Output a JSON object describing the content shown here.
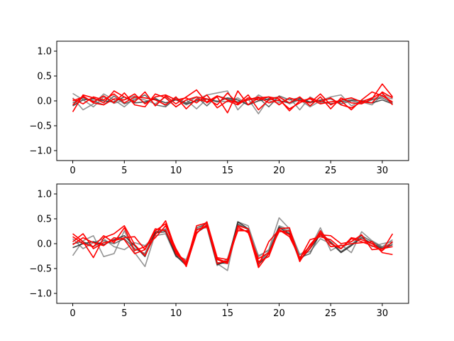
{
  "chart_data": [
    {
      "type": "line",
      "title": "",
      "xlabel": "",
      "ylabel": "",
      "xlim": [
        -1.55,
        32.55
      ],
      "ylim": [
        -1.2,
        1.2
      ],
      "xticks": [
        0,
        5,
        10,
        15,
        20,
        25,
        30
      ],
      "yticks": [
        -1.0,
        -0.5,
        0.0,
        0.5,
        1.0
      ],
      "ytick_labels": [
        "−1.0",
        "−0.5",
        "0.0",
        "0.5",
        "1.0"
      ],
      "grid": false,
      "legend": "none",
      "x": [
        0,
        1,
        2,
        3,
        4,
        5,
        6,
        7,
        8,
        9,
        10,
        11,
        12,
        13,
        14,
        15,
        16,
        17,
        18,
        19,
        20,
        21,
        22,
        23,
        24,
        25,
        26,
        27,
        28,
        29,
        30,
        31
      ],
      "series": [
        {
          "color": "#808080",
          "values": [
            0.15,
            0.02,
            -0.12,
            0.08,
            -0.05,
            0.02,
            0.1,
            -0.04,
            0.06,
            -0.1,
            0.04,
            -0.08,
            0.02,
            0.12,
            0.16,
            0.2,
            -0.18,
            0.04,
            -0.26,
            0.05,
            0.08,
            -0.06,
            0.02,
            -0.12,
            0.0,
            0.08,
            0.12,
            -0.1,
            0.0,
            0.04,
            0.09,
            0.04
          ]
        },
        {
          "color": "#808080",
          "values": [
            0.06,
            -0.18,
            -0.06,
            0.14,
            0.02,
            -0.12,
            0.06,
            0.02,
            -0.06,
            0.08,
            -0.12,
            0.02,
            -0.16,
            0.04,
            0.0,
            -0.02,
            0.06,
            -0.08,
            0.12,
            0.0,
            -0.04,
            0.06,
            -0.18,
            0.08,
            -0.04,
            -0.02,
            0.0,
            0.06,
            -0.02,
            -0.08,
            0.12,
            0.08
          ]
        },
        {
          "color": "#555555",
          "values": [
            -0.04,
            0.06,
            0.0,
            -0.08,
            0.1,
            -0.06,
            0.02,
            0.12,
            -0.08,
            -0.12,
            0.06,
            -0.04,
            0.08,
            -0.1,
            0.1,
            0.04,
            -0.02,
            0.02,
            0.06,
            -0.12,
            0.1,
            0.02,
            0.06,
            -0.04,
            0.02,
            0.04,
            -0.06,
            0.0,
            -0.04,
            0.02,
            0.06,
            -0.04
          ]
        },
        {
          "color": "#333333",
          "values": [
            -0.1,
            0.02,
            0.04,
            0.0,
            -0.02,
            0.08,
            -0.04,
            -0.02,
            0.04,
            -0.04,
            0.02,
            -0.06,
            0.0,
            0.04,
            -0.02,
            0.06,
            0.02,
            -0.08,
            0.0,
            0.04,
            0.0,
            -0.04,
            0.04,
            -0.02,
            0.0,
            -0.06,
            -0.02,
            0.02,
            0.0,
            -0.04,
            0.02,
            -0.06
          ]
        },
        {
          "color": "#ff0000",
          "values": [
            -0.22,
            0.12,
            0.06,
            -0.04,
            0.2,
            0.08,
            -0.02,
            0.18,
            -0.1,
            0.1,
            -0.06,
            0.08,
            0.22,
            -0.04,
            0.08,
            -0.24,
            0.2,
            -0.08,
            0.06,
            0.08,
            0.04,
            -0.2,
            0.0,
            0.04,
            -0.06,
            -0.02,
            0.0,
            -0.18,
            0.02,
            0.18,
            0.1,
            -0.02
          ]
        },
        {
          "color": "#ff0000",
          "values": [
            0.0,
            0.08,
            -0.02,
            0.1,
            -0.04,
            0.16,
            -0.08,
            -0.12,
            0.14,
            0.06,
            -0.12,
            0.02,
            0.08,
            0.04,
            -0.08,
            0.16,
            -0.06,
            0.12,
            -0.18,
            0.02,
            0.08,
            -0.04,
            0.08,
            -0.1,
            0.08,
            -0.16,
            0.06,
            -0.04,
            -0.06,
            0.04,
            0.34,
            0.08
          ]
        },
        {
          "color": "#ff0000",
          "values": [
            0.04,
            -0.06,
            0.08,
            0.02,
            0.14,
            -0.04,
            0.08,
            0.06,
            0.02,
            -0.08,
            0.08,
            -0.16,
            0.04,
            -0.02,
            0.1,
            0.02,
            -0.04,
            0.02,
            0.08,
            -0.04,
            0.02,
            -0.16,
            -0.04,
            0.06,
            -0.02,
            0.06,
            -0.08,
            -0.14,
            -0.02,
            0.06,
            0.16,
            -0.08
          ]
        },
        {
          "color": "#ff0000",
          "values": [
            -0.08,
            0.1,
            -0.04,
            -0.08,
            0.04,
            0.02,
            0.14,
            -0.06,
            0.08,
            0.12,
            0.02,
            0.06,
            -0.04,
            0.12,
            -0.14,
            0.0,
            -0.08,
            0.06,
            0.02,
            0.08,
            -0.08,
            0.06,
            0.0,
            -0.04,
            0.14,
            -0.08,
            0.02,
            0.06,
            -0.02,
            -0.04,
            0.18,
            0.06
          ]
        }
      ]
    },
    {
      "type": "line",
      "title": "",
      "xlabel": "",
      "ylabel": "",
      "xlim": [
        -1.55,
        32.55
      ],
      "ylim": [
        -1.2,
        1.2
      ],
      "xticks": [
        0,
        5,
        10,
        15,
        20,
        25,
        30
      ],
      "yticks": [
        -1.0,
        -0.5,
        0.0,
        0.5,
        1.0
      ],
      "ytick_labels": [
        "−1.0",
        "−0.5",
        "0.0",
        "0.5",
        "1.0"
      ],
      "grid": false,
      "legend": "none",
      "x": [
        0,
        1,
        2,
        3,
        4,
        5,
        6,
        7,
        8,
        9,
        10,
        11,
        12,
        13,
        14,
        15,
        16,
        17,
        18,
        19,
        20,
        21,
        22,
        23,
        24,
        25,
        26,
        27,
        28,
        29,
        30,
        31
      ],
      "series": [
        {
          "color": "#808080",
          "values": [
            -0.24,
            0.06,
            0.16,
            -0.26,
            -0.2,
            0.26,
            -0.18,
            -0.46,
            0.2,
            0.3,
            -0.24,
            -0.32,
            0.26,
            0.44,
            -0.4,
            -0.54,
            0.44,
            0.36,
            -0.26,
            -0.12,
            0.52,
            0.3,
            -0.22,
            -0.08,
            0.32,
            -0.14,
            -0.02,
            -0.18,
            0.24,
            0.06,
            -0.06,
            0.08
          ]
        },
        {
          "color": "#808080",
          "values": [
            0.1,
            -0.1,
            0.02,
            0.1,
            -0.06,
            -0.12,
            0.02,
            -0.04,
            0.16,
            0.2,
            -0.26,
            -0.38,
            0.3,
            0.32,
            -0.44,
            -0.3,
            0.38,
            0.3,
            -0.24,
            -0.14,
            0.36,
            0.28,
            -0.22,
            -0.16,
            0.1,
            0.0,
            -0.1,
            0.04,
            0.16,
            -0.06,
            0.0,
            0.04
          ]
        },
        {
          "color": "#555555",
          "values": [
            0.0,
            0.04,
            -0.06,
            0.06,
            0.0,
            0.1,
            -0.1,
            -0.2,
            0.24,
            0.28,
            -0.2,
            -0.4,
            0.32,
            0.4,
            -0.38,
            -0.4,
            0.4,
            0.28,
            -0.38,
            -0.16,
            0.34,
            0.24,
            -0.28,
            -0.2,
            0.22,
            0.04,
            -0.16,
            -0.02,
            0.16,
            0.04,
            -0.08,
            0.02
          ]
        },
        {
          "color": "#222222",
          "values": [
            -0.08,
            0.0,
            0.04,
            -0.02,
            0.08,
            0.16,
            -0.04,
            -0.26,
            0.22,
            0.24,
            -0.24,
            -0.44,
            0.22,
            0.36,
            -0.42,
            -0.36,
            0.44,
            0.3,
            -0.42,
            -0.2,
            0.32,
            0.2,
            -0.34,
            -0.1,
            0.18,
            0.02,
            -0.18,
            -0.04,
            0.12,
            0.0,
            -0.1,
            -0.02
          ]
        },
        {
          "color": "#ff0000",
          "values": [
            0.2,
            0.04,
            -0.28,
            0.12,
            0.2,
            0.36,
            -0.02,
            -0.24,
            0.18,
            0.46,
            -0.14,
            -0.44,
            0.2,
            0.44,
            -0.28,
            -0.32,
            0.26,
            0.26,
            -0.48,
            -0.2,
            0.3,
            0.32,
            -0.32,
            -0.1,
            0.26,
            0.0,
            -0.1,
            0.1,
            0.04,
            -0.04,
            -0.14,
            0.2
          ]
        },
        {
          "color": "#ff0000",
          "values": [
            0.04,
            0.2,
            -0.1,
            0.02,
            0.06,
            0.12,
            0.14,
            -0.12,
            0.26,
            0.4,
            -0.2,
            -0.4,
            0.36,
            0.42,
            -0.32,
            -0.4,
            0.3,
            0.24,
            -0.44,
            0.04,
            0.28,
            0.18,
            -0.3,
            0.08,
            0.14,
            0.08,
            -0.1,
            0.12,
            0.08,
            0.0,
            -0.14,
            0.04
          ]
        },
        {
          "color": "#ff0000",
          "values": [
            0.14,
            0.0,
            -0.06,
            0.16,
            0.02,
            0.32,
            -0.14,
            -0.06,
            0.12,
            0.36,
            -0.1,
            -0.46,
            0.22,
            0.38,
            -0.4,
            -0.34,
            0.36,
            0.3,
            -0.36,
            -0.26,
            0.28,
            0.14,
            -0.28,
            -0.04,
            0.18,
            0.16,
            0.0,
            0.04,
            0.18,
            -0.12,
            -0.1,
            -0.06
          ]
        },
        {
          "color": "#ff0000",
          "values": [
            -0.02,
            0.12,
            0.02,
            -0.04,
            0.12,
            0.08,
            -0.2,
            -0.12,
            0.3,
            0.26,
            -0.18,
            -0.36,
            0.28,
            0.34,
            -0.3,
            -0.38,
            0.34,
            0.22,
            -0.3,
            -0.18,
            0.24,
            0.26,
            -0.36,
            -0.02,
            0.22,
            -0.06,
            -0.04,
            0.0,
            0.02,
            0.04,
            -0.18,
            -0.22
          ]
        }
      ]
    }
  ]
}
